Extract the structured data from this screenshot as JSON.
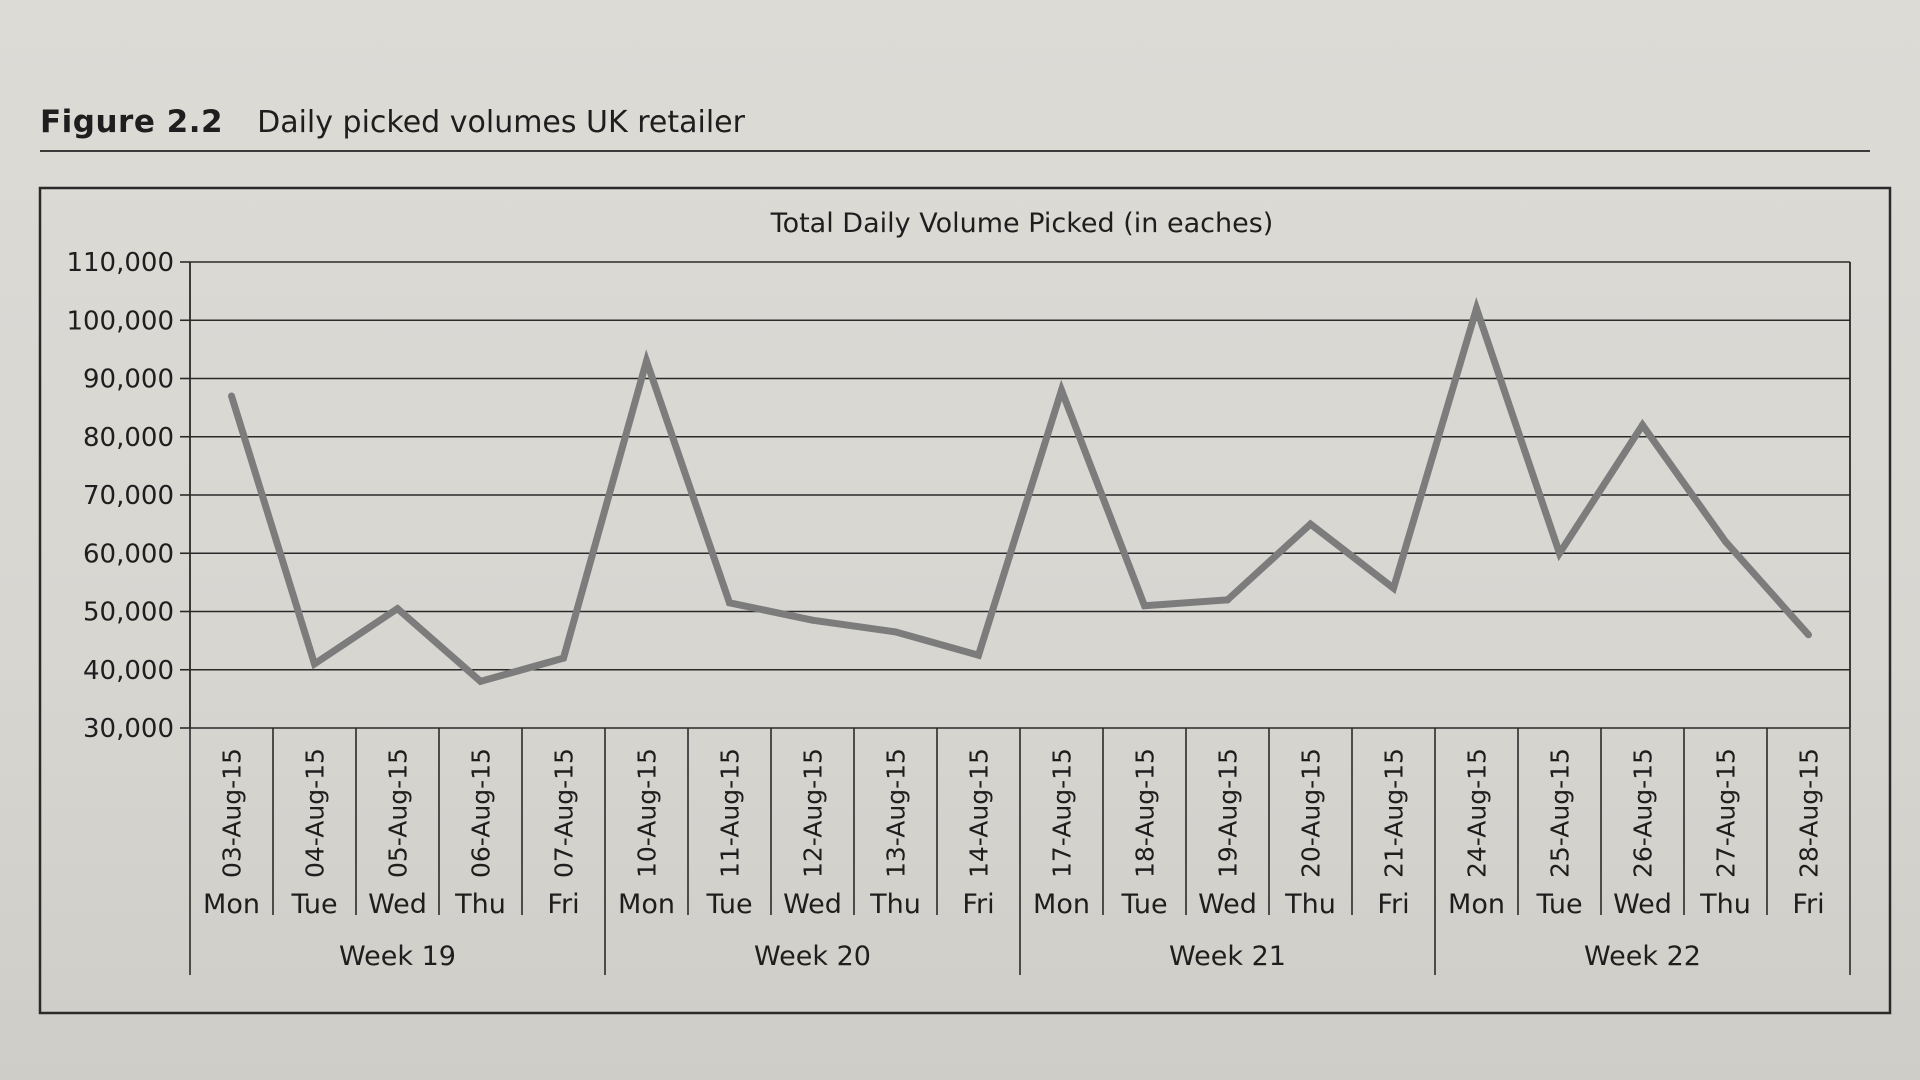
{
  "figure": {
    "label": "Figure 2.2",
    "caption": "Daily picked volumes UK retailer"
  },
  "colors": {
    "line": "#7c7c7c",
    "grid": "#2a2a2a",
    "text": "#1e1e1e"
  },
  "chart_data": {
    "type": "line",
    "title": "Total Daily Volume Picked (in eaches)",
    "xlabel": "",
    "ylabel": "",
    "ylim": [
      30000,
      110000
    ],
    "yticks": [
      30000,
      40000,
      50000,
      60000,
      70000,
      80000,
      90000,
      100000,
      110000
    ],
    "ytick_labels": [
      "30,000",
      "40,000",
      "50,000",
      "60,000",
      "70,000",
      "80,000",
      "90,000",
      "100,000",
      "110,000"
    ],
    "grid": true,
    "legend": "none",
    "categories": [
      "03-Aug-15",
      "04-Aug-15",
      "05-Aug-15",
      "06-Aug-15",
      "07-Aug-15",
      "10-Aug-15",
      "11-Aug-15",
      "12-Aug-15",
      "13-Aug-15",
      "14-Aug-15",
      "17-Aug-15",
      "18-Aug-15",
      "19-Aug-15",
      "20-Aug-15",
      "21-Aug-15",
      "24-Aug-15",
      "25-Aug-15",
      "26-Aug-15",
      "27-Aug-15",
      "28-Aug-15"
    ],
    "days": [
      "Mon",
      "Tue",
      "Wed",
      "Thu",
      "Fri",
      "Mon",
      "Tue",
      "Wed",
      "Thu",
      "Fri",
      "Mon",
      "Tue",
      "Wed",
      "Thu",
      "Fri",
      "Mon",
      "Tue",
      "Wed",
      "Thu",
      "Fri"
    ],
    "weeks": [
      "Week 19",
      "Week 20",
      "Week 21",
      "Week 22"
    ],
    "series": [
      {
        "values": [
          87000,
          41000,
          50500,
          38000,
          42000,
          93000,
          51500,
          48500,
          46500,
          42500,
          88000,
          51000,
          52000,
          65000,
          54000,
          102000,
          60000,
          82000,
          62000,
          46000
        ]
      }
    ]
  }
}
